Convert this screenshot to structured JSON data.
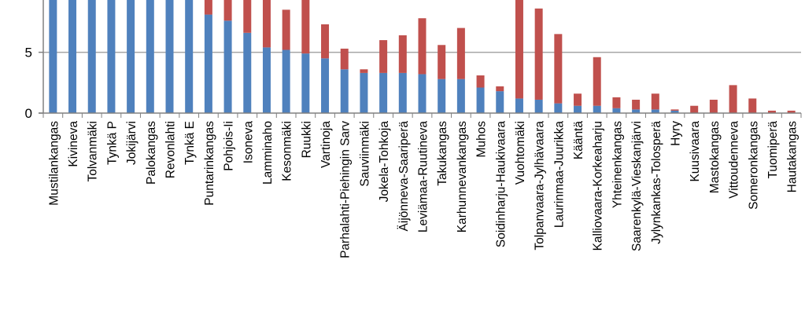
{
  "chart_data": {
    "type": "bar",
    "stacked": true,
    "title": "",
    "xlabel": "",
    "ylabel": "",
    "ylim": [
      0,
      9.3
    ],
    "yticks": [
      0,
      5
    ],
    "grid": true,
    "legend": "none",
    "colors": {
      "blue": "#4f81bd",
      "red": "#c0504d",
      "grid": "#a6a6a6",
      "axis": "#808080"
    },
    "categories": [
      "Mustilankangas",
      "Kivineva",
      "Tolvanmäki",
      "Tynkä P",
      "Jokijärvi",
      "Palokangas",
      "Revonlahti",
      "Tynkä E",
      "Puntarinkangas",
      "Pohjois-Ii",
      "Isoneva",
      "Lamminaho",
      "Kesonmäki",
      "Ruukki",
      "Vartinoja",
      "Parhalahti-Piehingin Sarv",
      "Sauviinmäki",
      "Jokela-Tohkoja",
      "Äijönneva-Saariperä",
      "Leviämaa-Ruutineva",
      "Takukangas",
      "Karhunnevankangas",
      "Muhos",
      "Soidinharju-Haukivaara",
      "Vuohtomäki",
      "Tolpanvaara-Jylhävaara",
      "Laurinmaa-Juurikka",
      "Kääntä",
      "Kalliovaara-Korkeaharju",
      "Yhteinenkangas",
      "Saarenkylä-Vieskanjärvi",
      "Jylynkankas-Tolosperä",
      "Hyry",
      "Kuusivaara",
      "Mastokangas",
      "Vittoudenneva",
      "Someronkangas",
      "Tuomiperä",
      "Hautakangas"
    ],
    "series": [
      {
        "color": "#4f81bd",
        "values": [
          9.5,
          9.5,
          9.5,
          9.5,
          9.5,
          9.5,
          9.5,
          9.5,
          8.1,
          7.6,
          6.6,
          5.4,
          5.2,
          4.9,
          4.5,
          3.6,
          3.3,
          3.3,
          3.3,
          3.2,
          2.8,
          2.8,
          2.1,
          1.8,
          1.2,
          1.1,
          0.8,
          0.6,
          0.6,
          0.4,
          0.3,
          0.3,
          0.2,
          0,
          0,
          0,
          0,
          0,
          0
        ]
      },
      {
        "color": "#c0504d",
        "values": [
          0,
          0,
          0,
          0,
          0,
          0,
          0,
          0,
          1.4,
          1.9,
          2.8,
          4.1,
          3.3,
          4.6,
          2.8,
          1.7,
          0.3,
          2.7,
          3.1,
          4.6,
          2.8,
          4.2,
          1.0,
          0.4,
          8.3,
          7.5,
          5.7,
          1.0,
          4.0,
          0.9,
          0.8,
          1.3,
          0.1,
          0.6,
          1.1,
          2.3,
          1.2,
          0.2,
          0.2
        ]
      }
    ]
  }
}
